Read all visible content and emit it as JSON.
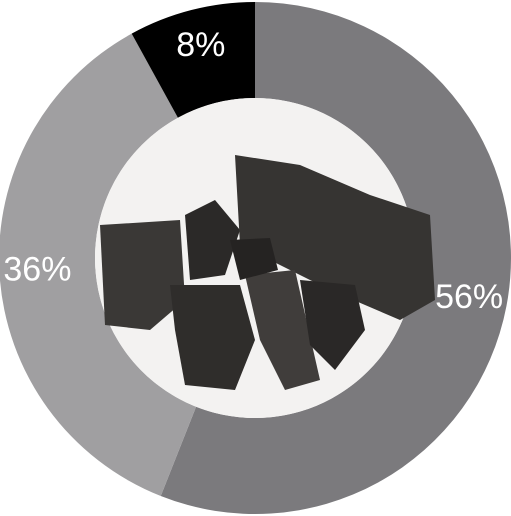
{
  "chart_data": {
    "type": "pie",
    "donut": true,
    "start_angle": 0,
    "direction": "clockwise",
    "values": [
      56,
      36,
      8
    ],
    "value_labels": [
      "56%",
      "36%",
      "8%"
    ],
    "colors": [
      "#7b7a7d",
      "#a09fa1",
      "#000000"
    ]
  }
}
